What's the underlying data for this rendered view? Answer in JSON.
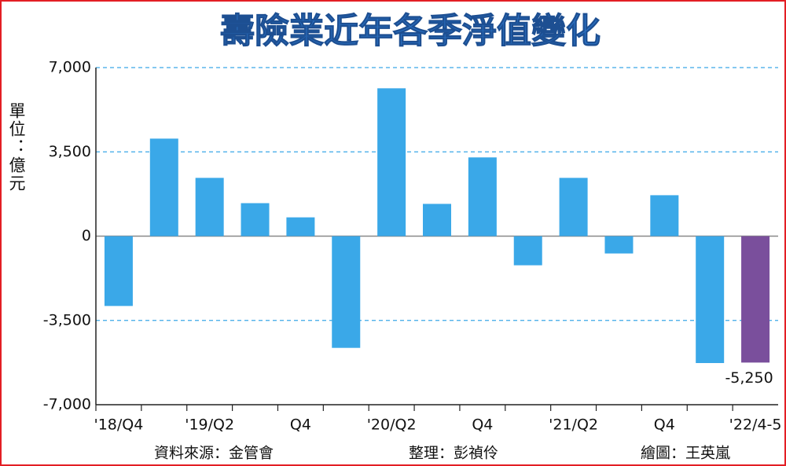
{
  "chart_data": {
    "type": "bar",
    "title": "壽險業近年各季淨值變化",
    "y_label": "單位：億元",
    "notes": [
      "資料來源：金管會",
      "整理：彭禎伶",
      "繪圖：王英嵐"
    ],
    "categories": [
      "'18/Q4",
      null,
      "'19/Q2",
      null,
      "Q4",
      null,
      "'20/Q2",
      null,
      "Q4",
      null,
      "'21/Q2",
      null,
      "Q4",
      null,
      "'22/4-5"
    ],
    "values": [
      -2900,
      4050,
      2420,
      1370,
      780,
      -4640,
      6140,
      1340,
      3270,
      -1210,
      2420,
      -720,
      1700,
      -5270,
      -5250
    ],
    "value_labels": [
      null,
      null,
      null,
      null,
      null,
      null,
      null,
      null,
      null,
      null,
      null,
      null,
      null,
      null,
      "-5,250"
    ],
    "colors": [
      "#3aa8e8",
      "#3aa8e8",
      "#3aa8e8",
      "#3aa8e8",
      "#3aa8e8",
      "#3aa8e8",
      "#3aa8e8",
      "#3aa8e8",
      "#3aa8e8",
      "#3aa8e8",
      "#3aa8e8",
      "#3aa8e8",
      "#3aa8e8",
      "#3aa8e8",
      "#7a4f9c"
    ],
    "ylim": [
      -7000,
      7000
    ],
    "yticks": [
      {
        "value": -7000,
        "label": "-7,000"
      },
      {
        "value": -3500,
        "label": "-3,500"
      },
      0,
      {
        "value": 3500,
        "label": "3,500"
      },
      {
        "value": 7000,
        "label": "7,000"
      }
    ],
    "grid": true
  }
}
